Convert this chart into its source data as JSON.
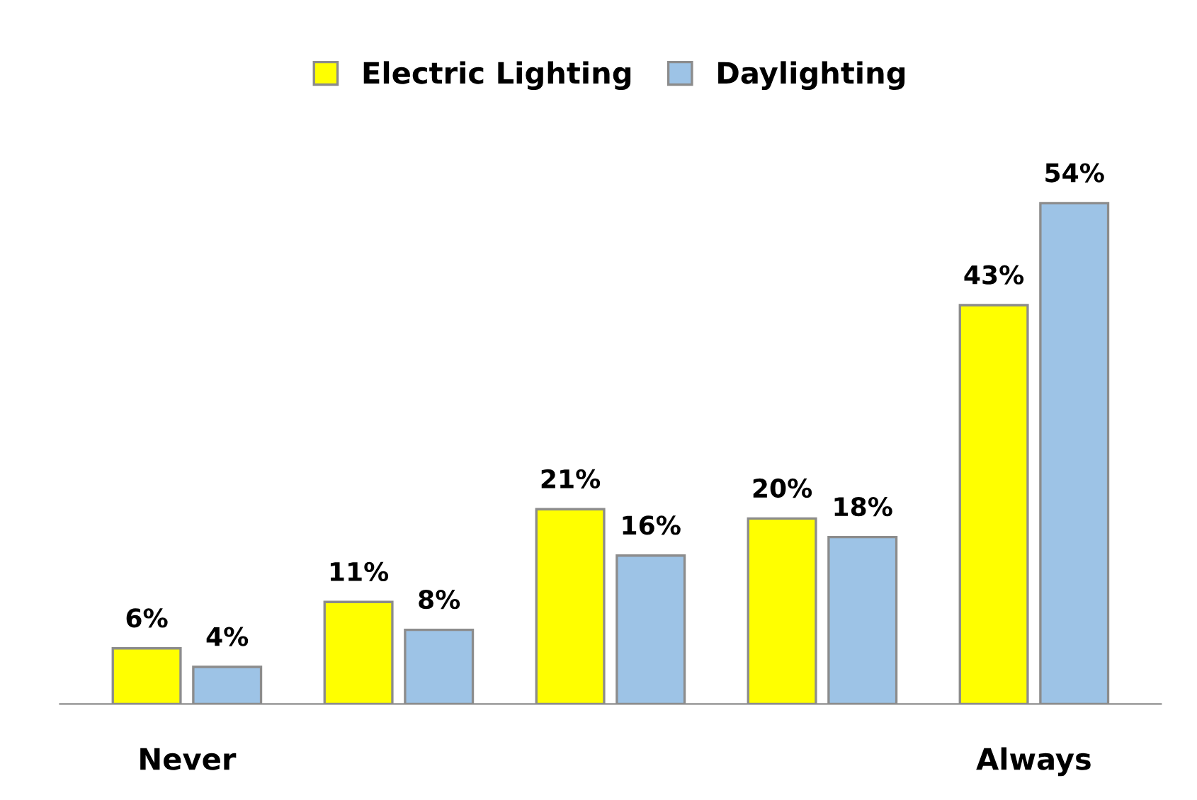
{
  "chart_data": {
    "type": "bar",
    "categories": [
      "Never",
      null,
      null,
      null,
      "Always"
    ],
    "series": [
      {
        "name": "Electric Lighting",
        "color": "#ffff00",
        "values": [
          6,
          11,
          21,
          20,
          43
        ],
        "value_labels": [
          "6%",
          "11%",
          "21%",
          "20%",
          "43%"
        ]
      },
      {
        "name": "Daylighting",
        "color": "#9dc3e6",
        "values": [
          4,
          8,
          16,
          18,
          54
        ],
        "value_labels": [
          "4%",
          "8%",
          "16%",
          "18%",
          "54%"
        ]
      }
    ],
    "legend": "top",
    "grid": false
  }
}
